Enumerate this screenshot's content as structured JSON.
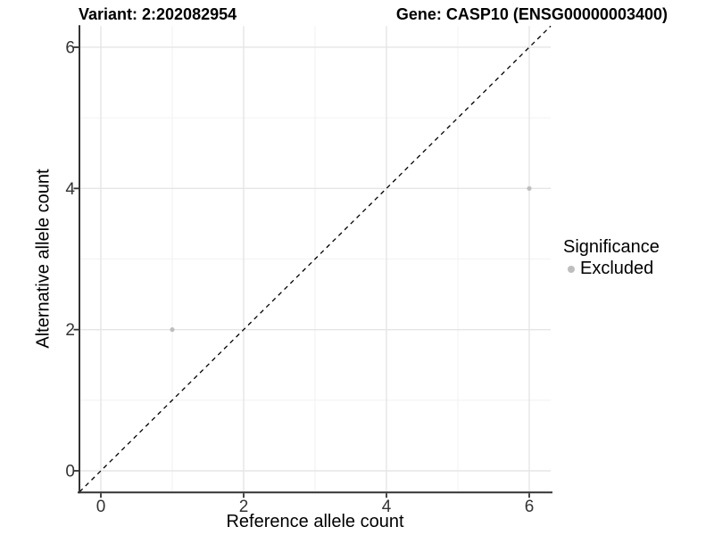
{
  "chart_data": {
    "type": "scatter",
    "title_left": "Variant: 2:202082954",
    "title_right": "Gene: CASP10 (ENSG00000003400)",
    "xlabel": "Reference allele count",
    "ylabel": "Alternative allele count",
    "xlim": [
      -0.3,
      6.3
    ],
    "ylim": [
      -0.3,
      6.3
    ],
    "x_ticks": [
      0,
      2,
      4,
      6
    ],
    "y_ticks": [
      0,
      2,
      4,
      6
    ],
    "x_minor_ticks": [
      1,
      3,
      5
    ],
    "y_minor_ticks": [
      1,
      3,
      5
    ],
    "grid": "major+minor",
    "identity_line": {
      "slope": 1,
      "intercept": 0,
      "style": "dashed",
      "color": "#000000"
    },
    "series": [
      {
        "name": "Excluded",
        "color": "#bebebe",
        "points": [
          [
            1,
            2
          ],
          [
            6,
            4
          ]
        ]
      }
    ],
    "legend": {
      "title": "Significance",
      "position": "right",
      "entries": [
        {
          "label": "Excluded",
          "color": "#bebebe"
        }
      ]
    }
  },
  "colors": {
    "background": "#ffffff",
    "grid_major": "#e5e5e5",
    "grid_minor": "#f2f2f2",
    "axis": "#333333",
    "tick_text": "#333333",
    "point": "#bebebe"
  }
}
